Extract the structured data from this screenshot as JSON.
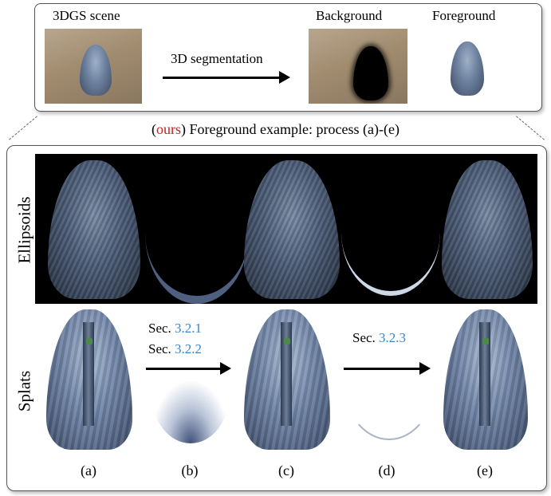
{
  "top": {
    "scene_label": "3DGS scene",
    "arrow_label": "3D segmentation",
    "background_label": "Background",
    "foreground_label": "Foreground"
  },
  "caption": {
    "ours": "ours",
    "open_paren": "(",
    "close_paren": ")",
    "rest": " Foreground example: process (a)-(e)"
  },
  "rows": {
    "ellipsoids": "Ellipsoids",
    "splats": "Splats"
  },
  "steps": {
    "b_line1_prefix": "Sec. ",
    "b_line1_ref": "3.2.1",
    "b_line2_prefix": "Sec. ",
    "b_line2_ref": "3.2.2",
    "d_prefix": "Sec. ",
    "d_ref": "3.2.3"
  },
  "letters": [
    "(a)",
    "(b)",
    "(c)",
    "(d)",
    "(e)"
  ],
  "colors": {
    "ours": "#d01818",
    "section_ref": "#3a86c8"
  }
}
